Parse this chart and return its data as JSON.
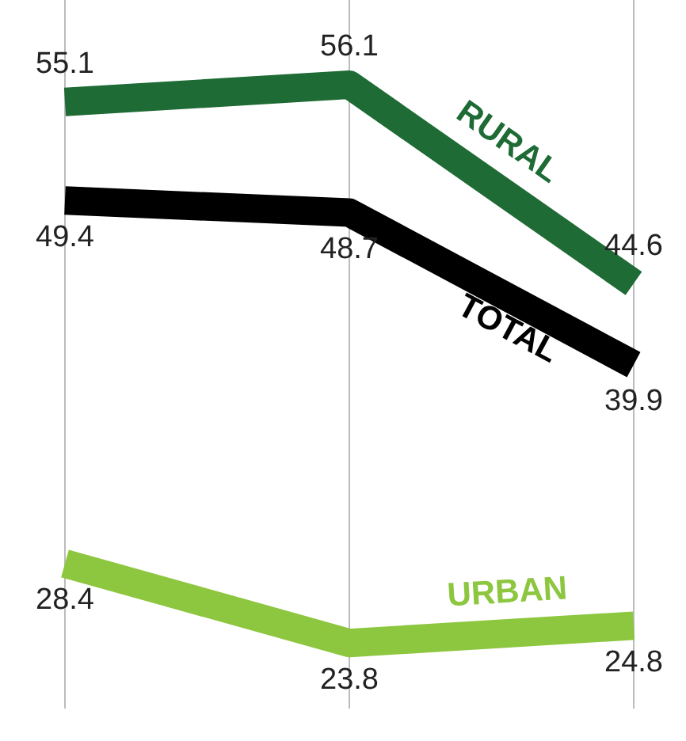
{
  "chart_data": {
    "type": "line",
    "categories": [
      null,
      null,
      null
    ],
    "series": [
      {
        "name": "RURAL",
        "color": "#1e6b35",
        "values": [
          55.1,
          56.1,
          44.6
        ]
      },
      {
        "name": "TOTAL",
        "color": "#000000",
        "values": [
          49.4,
          48.7,
          39.9
        ]
      },
      {
        "name": "URBAN",
        "color": "#8dc63f",
        "values": [
          28.4,
          23.8,
          24.8
        ]
      }
    ],
    "ylim": [
      20,
      61
    ],
    "grid": "x",
    "legend": false,
    "marker": "none",
    "line_style": "solid",
    "data_labels": true
  }
}
